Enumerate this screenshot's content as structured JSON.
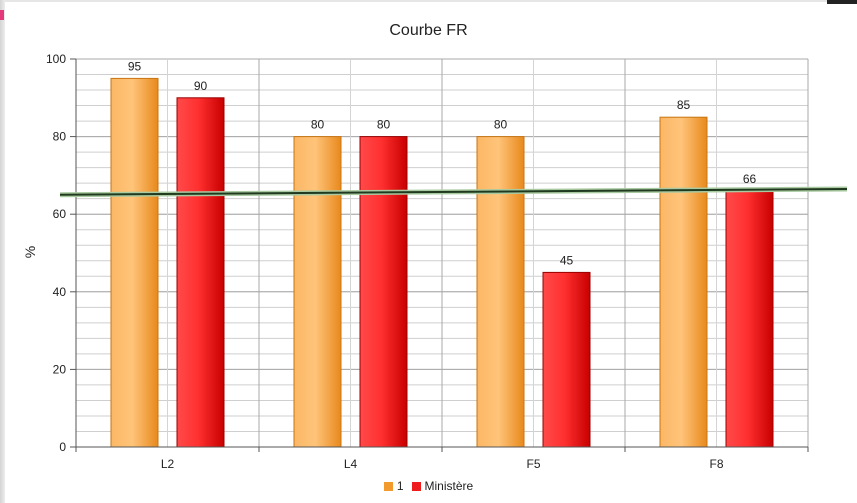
{
  "chart_data": {
    "type": "bar",
    "title": "Courbe FR",
    "xlabel": "",
    "ylabel": "%",
    "ylim": [
      0,
      100
    ],
    "yticks": [
      0,
      20,
      40,
      60,
      80,
      100
    ],
    "categories": [
      "L2",
      "L4",
      "F5",
      "F8"
    ],
    "series": [
      {
        "name": "1",
        "values": [
          95,
          80,
          80,
          85
        ],
        "color": "#f39a2e"
      },
      {
        "name": "Ministère",
        "values": [
          90,
          80,
          45,
          66
        ],
        "color": "#ee1c1c"
      }
    ],
    "reference_line": {
      "from": 65,
      "to": 66.5,
      "color": "#1f3a1f"
    },
    "grid": true,
    "legend": "bottom"
  }
}
